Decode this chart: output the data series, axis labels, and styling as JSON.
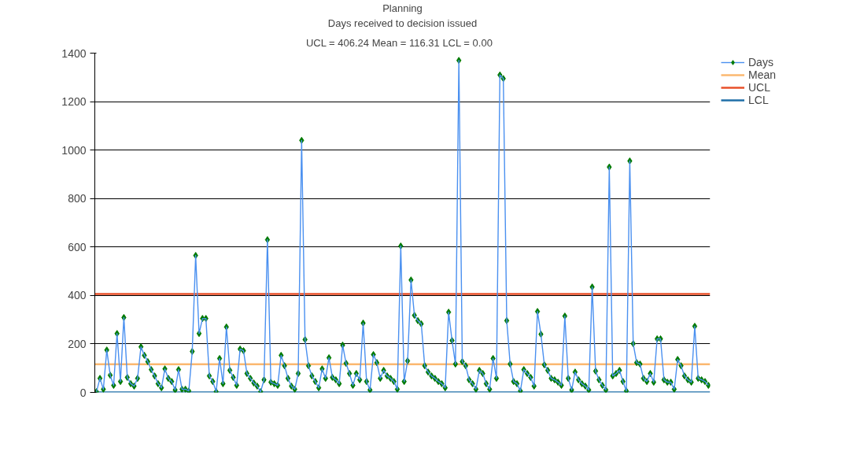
{
  "chart_data": {
    "type": "line",
    "title": "Planning",
    "subtitle": "Days received to decision issued",
    "annotations": [
      "UCL = 406.24  Mean = 116.31  LCL = 0.00"
    ],
    "categories": [
      null,
      null,
      null,
      null,
      null,
      null,
      null,
      null,
      null,
      null,
      null,
      null,
      null,
      null,
      null,
      null,
      null,
      null,
      null,
      null,
      null,
      null,
      null,
      null,
      null,
      null,
      null,
      null,
      null,
      null,
      null,
      null,
      null,
      null,
      null,
      null,
      null,
      null,
      null,
      null,
      null,
      null,
      null,
      null,
      null,
      null,
      null,
      null,
      null,
      null,
      null,
      null,
      null,
      null,
      null,
      null,
      null,
      null,
      null,
      null,
      null,
      null,
      null,
      null,
      null,
      null,
      null,
      null,
      null,
      null,
      null,
      null,
      null,
      null,
      null,
      null,
      null,
      null,
      null,
      null,
      null,
      null,
      null,
      null,
      null,
      null,
      null,
      null,
      null,
      null,
      null,
      null,
      null,
      null,
      null,
      null,
      null,
      null,
      null,
      null,
      null,
      null,
      null,
      null,
      null,
      null,
      null,
      null,
      null,
      null,
      null,
      null,
      null,
      null,
      null,
      null,
      null,
      null,
      null,
      null,
      null,
      null,
      null,
      null,
      null,
      null,
      null,
      null,
      null,
      null,
      null,
      null,
      null,
      null,
      null,
      null,
      null,
      null,
      null,
      null,
      null,
      null,
      null,
      null,
      null,
      null,
      null,
      null,
      null,
      null,
      null,
      null,
      null,
      null,
      null,
      null,
      null,
      null,
      null,
      null,
      null,
      null,
      null,
      null,
      null,
      null,
      null,
      null,
      null,
      null,
      null,
      null,
      null,
      null,
      null,
      null,
      null,
      null,
      null,
      null
    ],
    "series": [
      {
        "name": "Days",
        "color": "#4a90f0",
        "values": [
          3,
          58,
          13,
          175,
          71,
          29,
          243,
          45,
          309,
          62,
          36,
          26,
          58,
          188,
          153,
          127,
          94,
          68,
          36,
          19,
          97,
          58,
          45,
          10,
          94,
          13,
          13,
          6,
          169,
          565,
          243,
          305,
          305,
          68,
          45,
          3,
          140,
          36,
          270,
          91,
          62,
          29,
          179,
          172,
          78,
          58,
          39,
          26,
          3,
          52,
          630,
          42,
          36,
          29,
          153,
          110,
          58,
          26,
          13,
          78,
          1040,
          218,
          110,
          68,
          45,
          19,
          97,
          58,
          143,
          62,
          52,
          36,
          195,
          120,
          78,
          29,
          78,
          52,
          286,
          45,
          10,
          156,
          123,
          58,
          91,
          68,
          58,
          45,
          13,
          604,
          45,
          130,
          464,
          318,
          296,
          283,
          110,
          84,
          68,
          58,
          45,
          36,
          19,
          331,
          214,
          117,
          1370,
          127,
          110,
          52,
          36,
          13,
          91,
          78,
          36,
          13,
          140,
          58,
          1310,
          1295,
          296,
          117,
          45,
          36,
          6,
          94,
          78,
          62,
          26,
          334,
          240,
          114,
          91,
          58,
          52,
          42,
          29,
          315,
          58,
          10,
          84,
          52,
          36,
          26,
          10,
          435,
          88,
          52,
          29,
          10,
          930,
          68,
          78,
          91,
          45,
          6,
          955,
          201,
          123,
          117,
          58,
          45,
          78,
          42,
          221,
          221,
          52,
          42,
          42,
          13,
          136,
          110,
          68,
          52,
          42,
          273,
          58,
          52,
          45,
          29
        ]
      }
    ],
    "ref_lines": [
      {
        "axis": "y",
        "value": 116.31,
        "label": "Mean",
        "color": "#fbb870"
      },
      {
        "axis": "y",
        "value": 406.24,
        "label": "UCL",
        "color": "#e8502a"
      },
      {
        "axis": "y",
        "value": 0,
        "label": "LCL",
        "color": "#1f6fa8"
      }
    ],
    "ylim": [
      0,
      1400
    ],
    "yticks": [
      0,
      200,
      400,
      600,
      800,
      1000,
      1200,
      1400
    ],
    "grid": "y",
    "legend": "top right",
    "tick_labels": "y",
    "marker": "diamond",
    "line_style": "solid"
  }
}
